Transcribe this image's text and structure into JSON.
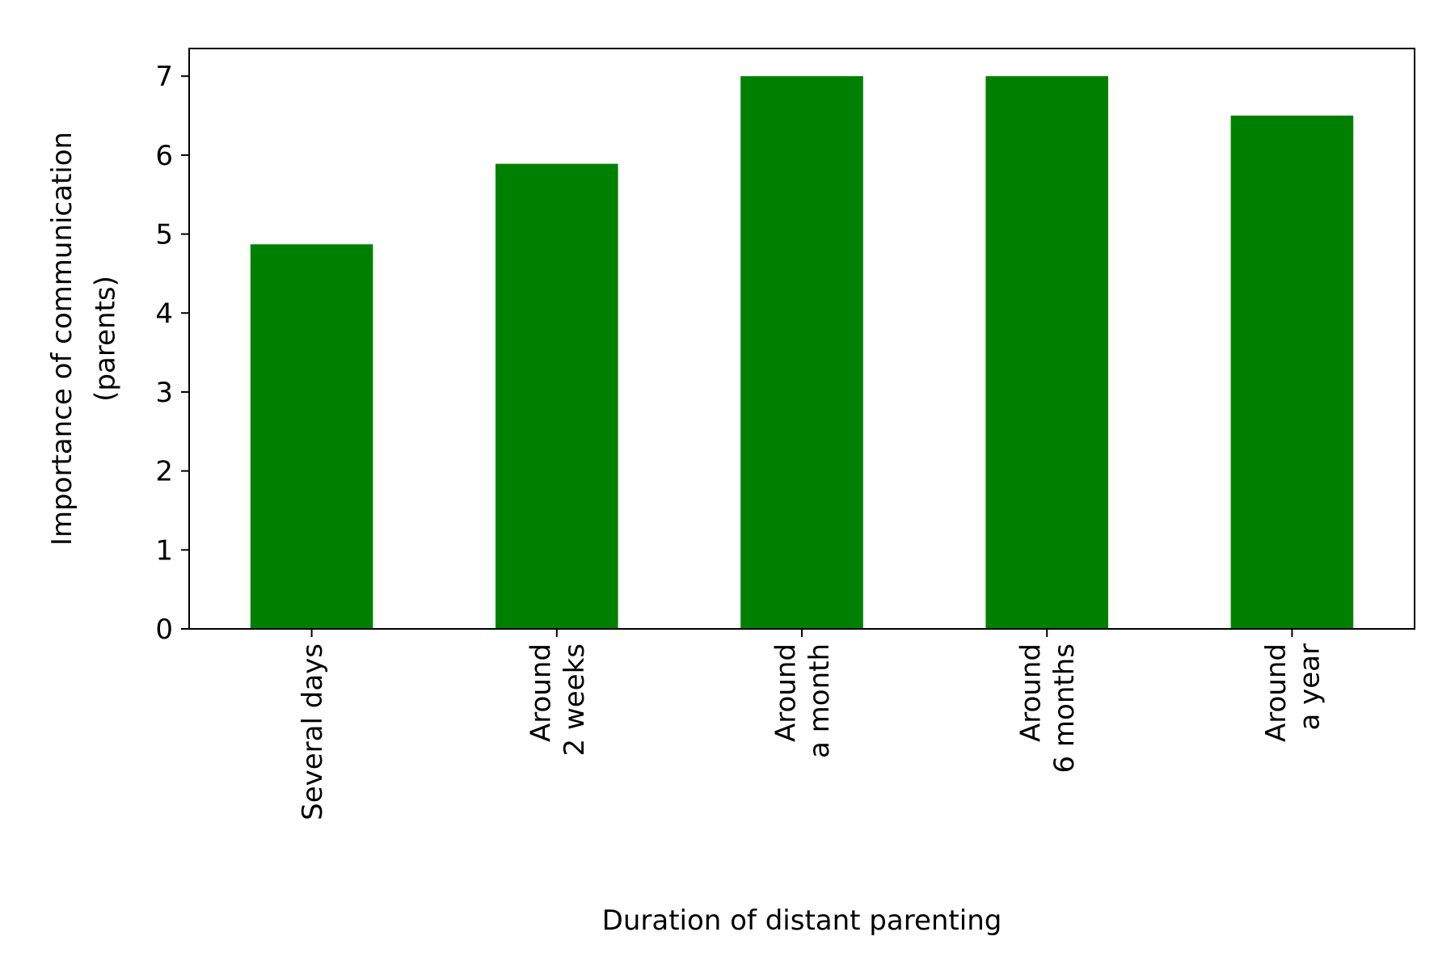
{
  "chart_data": {
    "type": "bar",
    "title": "",
    "xlabel": "Duration of distant parenting",
    "ylabel": [
      "Importance of communication",
      "(parents)"
    ],
    "categories": [
      [
        "Several days"
      ],
      [
        "Around",
        "2 weeks"
      ],
      [
        "Around",
        "a month"
      ],
      [
        "Around",
        "6 months"
      ],
      [
        "Around",
        "a year"
      ]
    ],
    "values": [
      4.87,
      5.89,
      7.0,
      7.0,
      6.5
    ],
    "ylim": [
      0,
      7.35
    ],
    "yticks": [
      0,
      1,
      2,
      3,
      4,
      5,
      6,
      7
    ],
    "grid": false,
    "legend": "none",
    "colors": {
      "bar": "#008000",
      "axis": "#000000",
      "background": "#ffffff"
    }
  }
}
